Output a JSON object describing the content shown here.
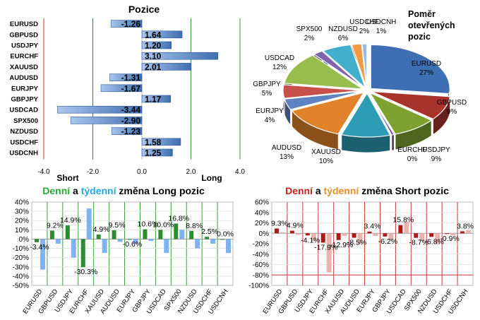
{
  "colors": {
    "bar_blue": "#5b8dd0",
    "long_green": "#2e8b2e",
    "short_red": "#b01818",
    "weekly_blue": "#7fb2ee",
    "weekly_red": "#e8b4b0",
    "grid_green": "#3c9a3c",
    "grid_red": "#c33a3a",
    "title_green": "#2ba838",
    "title_cyan": "#27a7e0",
    "title_red": "#cc1f1f",
    "title_orange": "#e3902b"
  },
  "chart_data": [
    {
      "id": "positions",
      "type": "bar",
      "orientation": "horizontal",
      "title": "Pozice",
      "categories": [
        "EURUSD",
        "GBPUSD",
        "USDJPY",
        "EURCHF",
        "XAUUSD",
        "AUDUSD",
        "EURJPY",
        "GBPJPY",
        "USDCAD",
        "SPX500",
        "NZDUSD",
        "USDCHF",
        "USDCNH"
      ],
      "values": [
        -1.26,
        1.64,
        1.2,
        3.1,
        2.01,
        -1.31,
        -1.67,
        1.17,
        -3.44,
        -2.9,
        -1.23,
        1.58,
        1.25
      ],
      "value_labels": [
        "-1.26",
        "1.64",
        "1.20",
        "3.10",
        "2.01",
        "-1.31",
        "-1.67",
        "1.17",
        "-3.44",
        "-2.90",
        "-1.23",
        "1.58",
        "1.25"
      ],
      "xlim": [
        -4.0,
        4.0
      ],
      "x_ticks": [
        "-4.0",
        "-2.0",
        "0.0",
        "2.0",
        "4.0"
      ],
      "short_label": "Short",
      "long_label": "Long"
    },
    {
      "id": "open_ratio",
      "type": "pie",
      "title_lines": [
        "Poměr",
        "otevřených",
        "pozic"
      ],
      "slices": [
        {
          "label": "EURUSD",
          "pct": "27%",
          "value": 27,
          "color": "#3f6fb3"
        },
        {
          "label": "GBPUSD",
          "pct": "9%",
          "value": 9,
          "color": "#a8332d"
        },
        {
          "label": "USDJPY",
          "pct": "9%",
          "value": 9,
          "color": "#7ea232"
        },
        {
          "label": "EURCHF",
          "pct": "0%",
          "value": 0.5,
          "color": "#6a4c97"
        },
        {
          "label": "XAUUSD",
          "pct": "10%",
          "value": 10,
          "color": "#2f9cb6"
        },
        {
          "label": "AUDUSD",
          "pct": "13%",
          "value": 13,
          "color": "#e0832b"
        },
        {
          "label": "EURJPY",
          "pct": "4%",
          "value": 4,
          "color": "#5d83c2"
        },
        {
          "label": "GBPJPY",
          "pct": "5%",
          "value": 5,
          "color": "#c9504a"
        },
        {
          "label": "USDCAD",
          "pct": "12%",
          "value": 12,
          "color": "#97bd4f"
        },
        {
          "label": "SPX500",
          "pct": "2%",
          "value": 2,
          "color": "#7f63ad"
        },
        {
          "label": "NZDUSD",
          "pct": "6%",
          "value": 6,
          "color": "#42b0cc"
        },
        {
          "label": "USDCHF",
          "pct": "2%",
          "value": 2,
          "color": "#f49a45"
        },
        {
          "label": "USDCNH",
          "pct": "1%",
          "value": 1,
          "color": "#9dbbe0"
        }
      ]
    },
    {
      "id": "long_change",
      "type": "bar",
      "title_parts": [
        "Denní",
        " a ",
        "týdenní",
        " změna Long pozic"
      ],
      "categories": [
        "EURUSD",
        "GBPUSD",
        "USDJPY",
        "EURCHF",
        "XAUUSD",
        "AUDUSD",
        "EURJPY",
        "GBPJPY",
        "USDCAD",
        "SPX500",
        "NZDUSD",
        "USDCHF",
        "USDCNH"
      ],
      "series": [
        {
          "name": "Denní",
          "values": [
            -3.4,
            9.2,
            14.9,
            -30.3,
            4.9,
            9.5,
            -0.6,
            10.6,
            10.0,
            16.8,
            8.8,
            2.5,
            0.0
          ]
        },
        {
          "name": "Týdenní",
          "values": [
            -33,
            -5,
            -20,
            33,
            -15,
            -3,
            -5,
            -2,
            -15,
            10,
            -10,
            -5,
            -15
          ]
        }
      ],
      "data_labels": [
        "-3.4%",
        "9.2%",
        "14.9%",
        "-30.3%",
        "4.9%",
        "9.5%",
        "-0.6%",
        "10.6%",
        "10.0%",
        "16.8%",
        "8.8%",
        "2.5%",
        "0.0%"
      ],
      "ylim": [
        -50,
        40
      ],
      "y_ticks": [
        "40%",
        "30%",
        "20%",
        "10%",
        "0%",
        "-10%",
        "-20%",
        "-30%",
        "-40%",
        "-50%"
      ]
    },
    {
      "id": "short_change",
      "type": "bar",
      "title_parts": [
        "Denní",
        " a ",
        "týdenní",
        " změna Short pozic"
      ],
      "categories": [
        "EURUSD",
        "GBPUSD",
        "USDJPY",
        "EURCHF",
        "XAUUSD",
        "AUDUSD",
        "EURJPY",
        "GBPJPY",
        "USDCAD",
        "SPX500",
        "NZDUSD",
        "USDCHF",
        "USDCNH"
      ],
      "series": [
        {
          "name": "Denní",
          "values": [
            9.3,
            4.9,
            -4.1,
            -17.9,
            -12.9,
            -8.5,
            3.4,
            -6.2,
            15.8,
            -8.7,
            -6.8,
            -0.9,
            3.8
          ]
        },
        {
          "name": "Týdenní",
          "values": [
            2,
            -3,
            -15,
            -75,
            -5,
            -20,
            -5,
            -12,
            22,
            -15,
            -20,
            -4,
            6
          ]
        }
      ],
      "data_labels": [
        "9.3%",
        "4.9%",
        "-4.1%",
        "-17.9%",
        "-12.9%",
        "-8.5%",
        "3.4%",
        "-6.2%",
        "15.8%",
        "-8.7%",
        "-6.8%",
        "-0.9%",
        "3.8%"
      ],
      "ylim": [
        -100,
        60
      ],
      "y_ticks": [
        "60%",
        "40%",
        "20%",
        "0%",
        "-20%",
        "-40%",
        "-60%",
        "-80%",
        "-100%"
      ]
    }
  ]
}
